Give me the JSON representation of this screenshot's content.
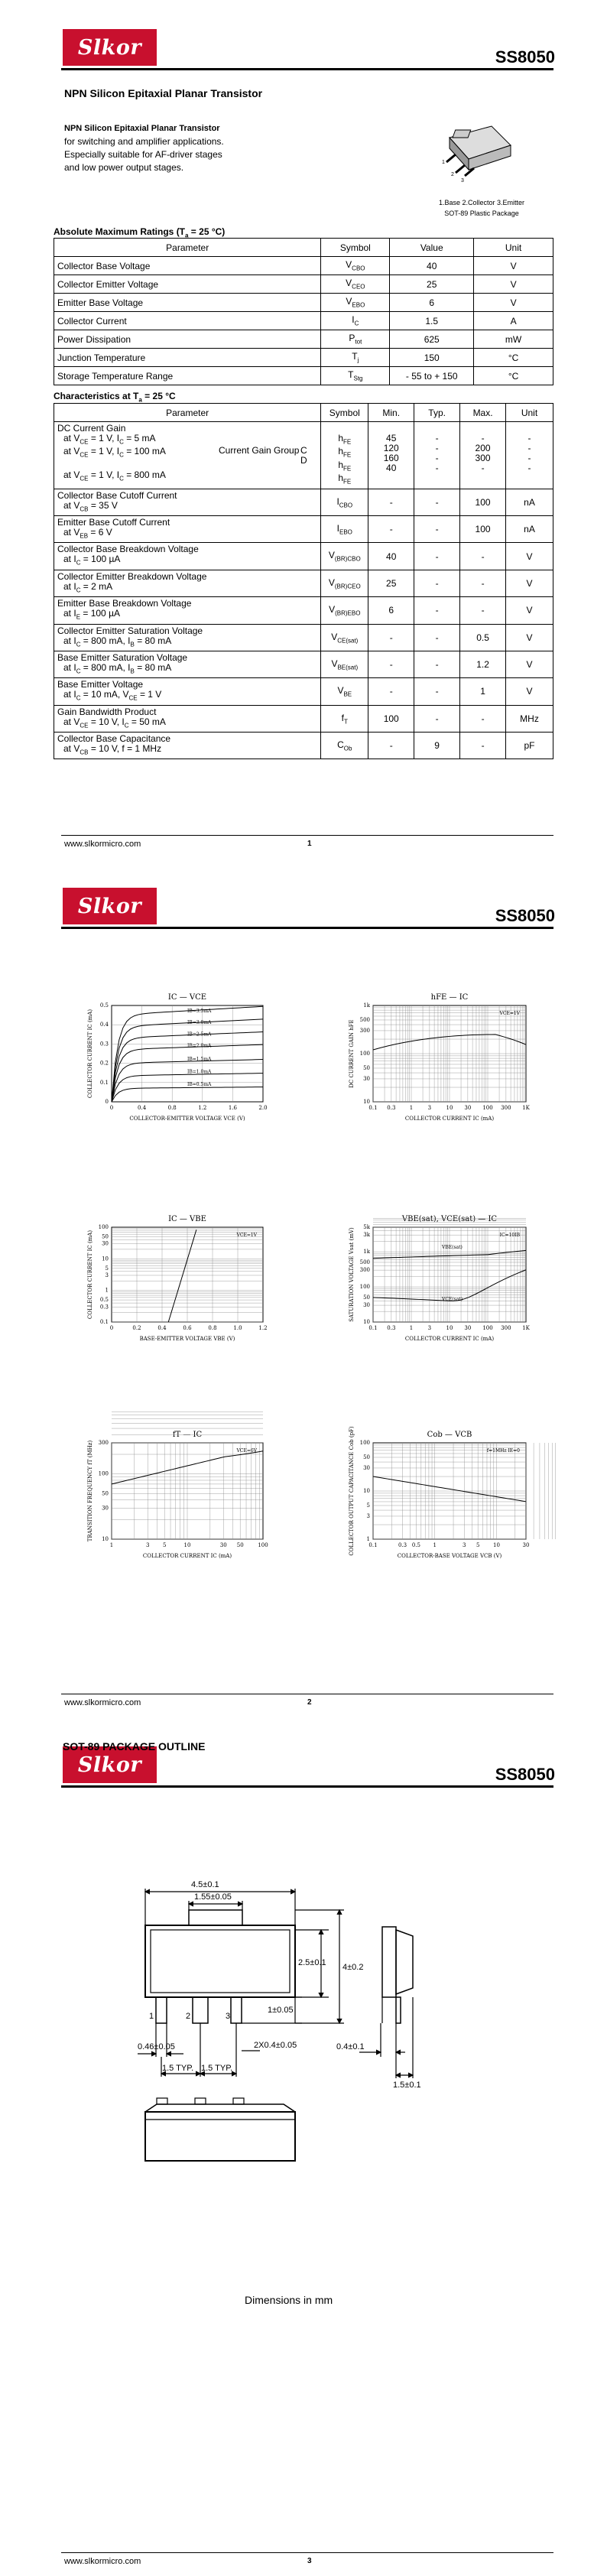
{
  "brand": {
    "logo_text": "Slkor",
    "part_number": "SS8050",
    "website": "www.slkormicro.com"
  },
  "page1": {
    "title": "NPN Silicon Epitaxial Planar Transistor",
    "intro_bold": "NPN Silicon Epitaxial Planar Transistor",
    "intro_lines": [
      "for switching and amplifier applications.",
      "Especially suitable for AF-driver stages",
      "and low power output stages."
    ],
    "package_caption": [
      "1.Base 2.Collector 3.Emitter",
      "SOT-89 Plastic Package"
    ],
    "abs_title": "Absolute Maximum Ratings (T",
    "abs_title_sub": "a",
    "abs_title_tail": " = 25 °C)",
    "abs_headers": [
      "Parameter",
      "Symbol",
      "Value",
      "Unit"
    ],
    "abs_rows": [
      {
        "param": "Collector Base Voltage",
        "sym": "V",
        "sub": "CBO",
        "value": "40",
        "unit": "V"
      },
      {
        "param": "Collector Emitter Voltage",
        "sym": "V",
        "sub": "CEO",
        "value": "25",
        "unit": "V"
      },
      {
        "param": "Emitter Base Voltage",
        "sym": "V",
        "sub": "EBO",
        "value": "6",
        "unit": "V"
      },
      {
        "param": "Collector Current",
        "sym": "I",
        "sub": "C",
        "value": "1.5",
        "unit": "A"
      },
      {
        "param": "Power Dissipation",
        "sym": "P",
        "sub": "tot",
        "value": "625",
        "unit": "mW"
      },
      {
        "param": "Junction Temperature",
        "sym": "T",
        "sub": "j",
        "value": "150",
        "unit": "°C"
      },
      {
        "param": "Storage Temperature Range",
        "sym": "T",
        "sub": "Stg",
        "value": "- 55 to + 150",
        "unit": "°C"
      }
    ],
    "char_title": "Characteristics at T",
    "char_title_sub": "a",
    "char_title_tail": " = 25 °C",
    "char_headers": [
      "Parameter",
      "Symbol",
      "Min.",
      "Typ.",
      "Max.",
      "Unit"
    ],
    "gain": {
      "title": "DC Current Gain",
      "lines": [
        "at V_CE = 1 V, I_C = 5 mA",
        "at V_CE = 1 V, I_C = 100 mA",
        "",
        "at V_CE = 1 V, I_C = 800 mA"
      ],
      "group_label": "Current Gain Group",
      "groups": [
        "C",
        "D"
      ],
      "sym": "h",
      "sub": "FE",
      "min": [
        "45",
        "120",
        "160",
        "40"
      ],
      "typ": [
        "-",
        "-",
        "-",
        "-"
      ],
      "max": [
        "-",
        "200",
        "300",
        "-"
      ],
      "unit": [
        "-",
        "-",
        "-",
        "-"
      ]
    },
    "char_rows": [
      {
        "p1": "Collector Base Cutoff Current",
        "p2": "at V_CB = 35 V",
        "sym": "I",
        "sub": "CBO",
        "min": "-",
        "typ": "-",
        "max": "100",
        "unit": "nA"
      },
      {
        "p1": "Emitter Base Cutoff Current",
        "p2": "at V_EB = 6 V",
        "sym": "I",
        "sub": "EBO",
        "min": "-",
        "typ": "-",
        "max": "100",
        "unit": "nA"
      },
      {
        "p1": "Collector Base Breakdown Voltage",
        "p2": "at I_C = 100 µA",
        "sym": "V",
        "sub": "(BR)CBO",
        "min": "40",
        "typ": "-",
        "max": "-",
        "unit": "V"
      },
      {
        "p1": "Collector Emitter Breakdown Voltage",
        "p2": "at I_C = 2 mA",
        "sym": "V",
        "sub": "(BR)CEO",
        "min": "25",
        "typ": "-",
        "max": "-",
        "unit": "V"
      },
      {
        "p1": "Emitter Base Breakdown Voltage",
        "p2": "at I_E = 100 µA",
        "sym": "V",
        "sub": "(BR)EBO",
        "min": "6",
        "typ": "-",
        "max": "-",
        "unit": "V"
      },
      {
        "p1": "Collector Emitter Saturation Voltage",
        "p2": "at I_C = 800 mA, I_B = 80 mA",
        "sym": "V",
        "sub": "CE(sat)",
        "min": "-",
        "typ": "-",
        "max": "0.5",
        "unit": "V"
      },
      {
        "p1": "Base Emitter Saturation Voltage",
        "p2": "at I_C = 800 mA, I_B = 80 mA",
        "sym": "V",
        "sub": "BE(sat)",
        "min": "-",
        "typ": "-",
        "max": "1.2",
        "unit": "V"
      },
      {
        "p1": "Base Emitter Voltage",
        "p2": "at I_C = 10 mA, V_CE = 1 V",
        "sym": "V",
        "sub": "BE",
        "min": "-",
        "typ": "-",
        "max": "1",
        "unit": "V"
      },
      {
        "p1": "Gain Bandwidth Product",
        "p2": "at V_CE = 10 V, I_C = 50 mA",
        "sym": "f",
        "sub": "T",
        "min": "100",
        "typ": "-",
        "max": "-",
        "unit": "MHz"
      },
      {
        "p1": "Collector Base Capacitance",
        "p2": "at V_CB = 10 V, f = 1 MHz",
        "sym": "C",
        "sub": "Ob",
        "min": "-",
        "typ": "9",
        "max": "-",
        "unit": "pF"
      }
    ],
    "page_number": "1"
  },
  "page2": {
    "page_number": "2",
    "charts": {
      "ic_vce": {
        "title": "I_C — V_CE",
        "ylabel": "COLLECTOR CURRENT I_C (mA)",
        "xlabel": "COLLECTOR-EMITTER VOLTAGE V_CE (V)",
        "yticks": [
          "0",
          "0.1",
          "0.2",
          "0.3",
          "0.4",
          "0.5"
        ],
        "xticks": [
          "0",
          "0.4",
          "0.8",
          "1.2",
          "1.6",
          "2.0"
        ],
        "curve_labels": [
          "I_B=3.5mA",
          "I_B=3.0mA",
          "I_B=2.5mA",
          "I_B=2.0mA",
          "I_B=1.5mA",
          "I_B=1.0mA",
          "I_B=0.5mA"
        ],
        "sat": [
          0.45,
          0.39,
          0.33,
          0.27,
          0.2,
          0.135,
          0.07
        ]
      },
      "hfe_ic": {
        "title": "h_FE — I_C",
        "ylabel": "DC CURRENT GAIN h_FE",
        "xlabel": "COLLECTOR CURRENT I_C (mA)",
        "note": "V_CE=1V",
        "yticks": [
          "10",
          "30",
          "50",
          "100",
          "300",
          "500",
          "1k"
        ],
        "xticks": [
          "0.1",
          "0.3",
          "1",
          "3",
          "10",
          "30",
          "100",
          "300",
          "1K"
        ]
      },
      "ic_vbe": {
        "title": "I_C — V_BE",
        "ylabel": "COLLECTOR CURRENT I_C (mA)",
        "xlabel": "BASE-EMITTER VOLTAGE V_BE (V)",
        "note": "V_CE=1V",
        "yticks": [
          "0.1",
          "0.3",
          "0.5",
          "1",
          "3",
          "5",
          "10",
          "30",
          "50",
          "100"
        ],
        "xticks": [
          "0",
          "0.2",
          "0.4",
          "0.6",
          "0.8",
          "1.0",
          "1.2"
        ]
      },
      "vsat_ic": {
        "title": "V_BE(sat), V_CE(sat) — I_C",
        "ylabel": "SATURATION VOLTAGE V_sat (mV)",
        "xlabel": "COLLECTOR CURRENT I_C (mA)",
        "note": "I_C=10I_B",
        "label_be": "V_BE(sat)",
        "label_ce": "V_CE(sat)",
        "yticks": [
          "10",
          "30",
          "50",
          "100",
          "300",
          "500",
          "1k",
          "3k",
          "5k"
        ],
        "xticks": [
          "0.1",
          "0.3",
          "1",
          "3",
          "10",
          "30",
          "100",
          "300",
          "1K"
        ]
      },
      "ft_ic": {
        "title": "f_T — I_C",
        "ylabel": "TRANSITION FREQUENCY f_T (MHz)",
        "xlabel": "COLLECTOR CURRENT I_C (mA)",
        "note": "V_CE=6V",
        "yticks": [
          "10",
          "30",
          "50",
          "100",
          "300"
        ],
        "xticks": [
          "1",
          "3",
          "5",
          "10",
          "30",
          "50",
          "100"
        ]
      },
      "cob_vcb": {
        "title": "C_ob — V_CB",
        "ylabel": "COLLECTOR OUTPUT CAPACITANCE C_ob (pF)",
        "xlabel": "COLLECTOR-BASE VOLTAGE V_CB (V)",
        "note": "f=1MHz I_E=0",
        "yticks": [
          "1",
          "3",
          "5",
          "10",
          "30",
          "50",
          "100"
        ],
        "xticks": [
          "0.1",
          "0.3",
          "0.5",
          "1",
          "3",
          "5",
          "10",
          "30"
        ]
      }
    }
  },
  "page3": {
    "page_number": "3",
    "heading": "SOT-89 PACKAGE OUTLINE",
    "dims": {
      "w": "4.5±0.1",
      "tab": "1.55±0.05",
      "h1": "2.5±0.1",
      "h2": "4±0.2",
      "lead_h": "1±0.05",
      "lead_w": "0.46±0.05",
      "pitch_a": "1.5 TYP.",
      "pitch_b": "1.5 TYP.",
      "pitch2": "2X0.4±0.05",
      "side_t": "0.4±0.1",
      "side_w": "1.5±0.1"
    },
    "pins": [
      "1",
      "2",
      "3"
    ],
    "caption": "Dimensions in mm"
  }
}
